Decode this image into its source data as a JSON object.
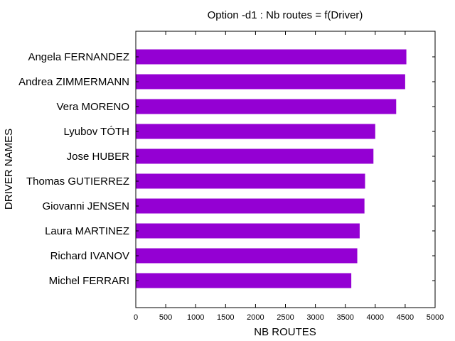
{
  "chart_data": {
    "type": "bar",
    "orientation": "horizontal",
    "title": "Option -d1 : Nb routes = f(Driver)",
    "xlabel": "NB ROUTES",
    "ylabel": "DRIVER NAMES",
    "categories": [
      "Angela FERNANDEZ",
      "Andrea ZIMMERMANN",
      "Vera MORENO",
      "Lyubov TÓTH",
      "Jose HUBER",
      "Thomas GUTIERREZ",
      "Giovanni JENSEN",
      "Laura MARTINEZ",
      "Richard IVANOV",
      "Michel FERRARI"
    ],
    "values": [
      4520,
      4500,
      4350,
      4000,
      3970,
      3830,
      3820,
      3740,
      3700,
      3600
    ],
    "xlim": [
      0,
      5000
    ],
    "xticks": [
      "0",
      "500",
      "1000",
      "1500",
      "2000",
      "2500",
      "3000",
      "3500",
      "4000",
      "4500",
      "5000"
    ],
    "bar_color": "#9400d3",
    "grid": false,
    "legend": "none"
  }
}
